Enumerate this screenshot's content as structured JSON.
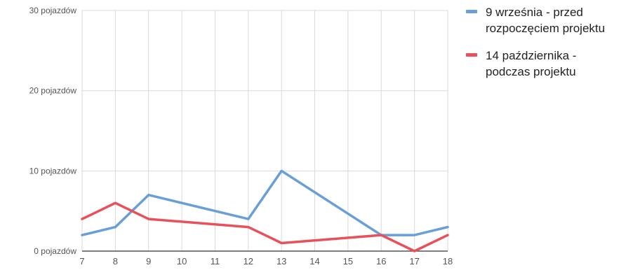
{
  "chart_data": {
    "type": "line",
    "x": [
      7,
      8,
      9,
      10,
      11,
      12,
      13,
      14,
      15,
      16,
      17,
      18
    ],
    "xticks": [
      "7",
      "8",
      "9",
      "10",
      "11",
      "12",
      "13",
      "14",
      "15",
      "16",
      "17",
      "18"
    ],
    "xlim": [
      7,
      18
    ],
    "ylim": [
      0,
      30
    ],
    "yticks": [
      0,
      10,
      20,
      30
    ],
    "ytick_labels": [
      "0 pojazdów",
      "10 pojazdów",
      "20 pojazdów",
      "30 pojazdów"
    ],
    "grid": true,
    "legend_position": "right",
    "title": "",
    "xlabel": "",
    "ylabel": "",
    "series": [
      {
        "name": "9 września - przed\nrozpoczęciem projektu",
        "color": "#6a9fd6",
        "points": [
          [
            7,
            2
          ],
          [
            8,
            3
          ],
          [
            9,
            7
          ],
          [
            12,
            4
          ],
          [
            13,
            10
          ],
          [
            16,
            2
          ],
          [
            17,
            2
          ],
          [
            18,
            3
          ]
        ]
      },
      {
        "name": "14 października -\npodczas projektu",
        "color": "#e8505b",
        "points": [
          [
            7,
            4
          ],
          [
            8,
            6
          ],
          [
            9,
            4
          ],
          [
            12,
            3
          ],
          [
            13,
            1
          ],
          [
            16,
            2
          ],
          [
            17,
            0
          ],
          [
            18,
            2
          ]
        ]
      }
    ]
  }
}
